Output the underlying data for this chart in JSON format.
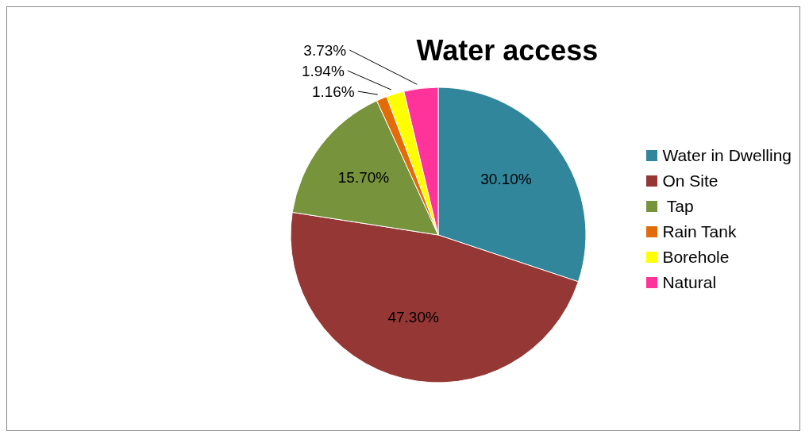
{
  "chart_data": {
    "type": "pie",
    "title": "Water access",
    "categories": [
      "Water in Dwelling",
      "On Site",
      " Tap",
      "Rain Tank",
      "Borehole",
      "Natural"
    ],
    "values": [
      30.1,
      47.3,
      15.7,
      1.16,
      1.94,
      3.73
    ],
    "colors": [
      "#31869b",
      "#953735",
      "#77933c",
      "#e36c09",
      "#ffff00",
      "#ff3399"
    ],
    "value_labels": [
      "30.10%",
      "47.30%",
      "15.70%",
      "1.16%",
      "1.94%",
      "3.73%"
    ],
    "legend": "right"
  }
}
